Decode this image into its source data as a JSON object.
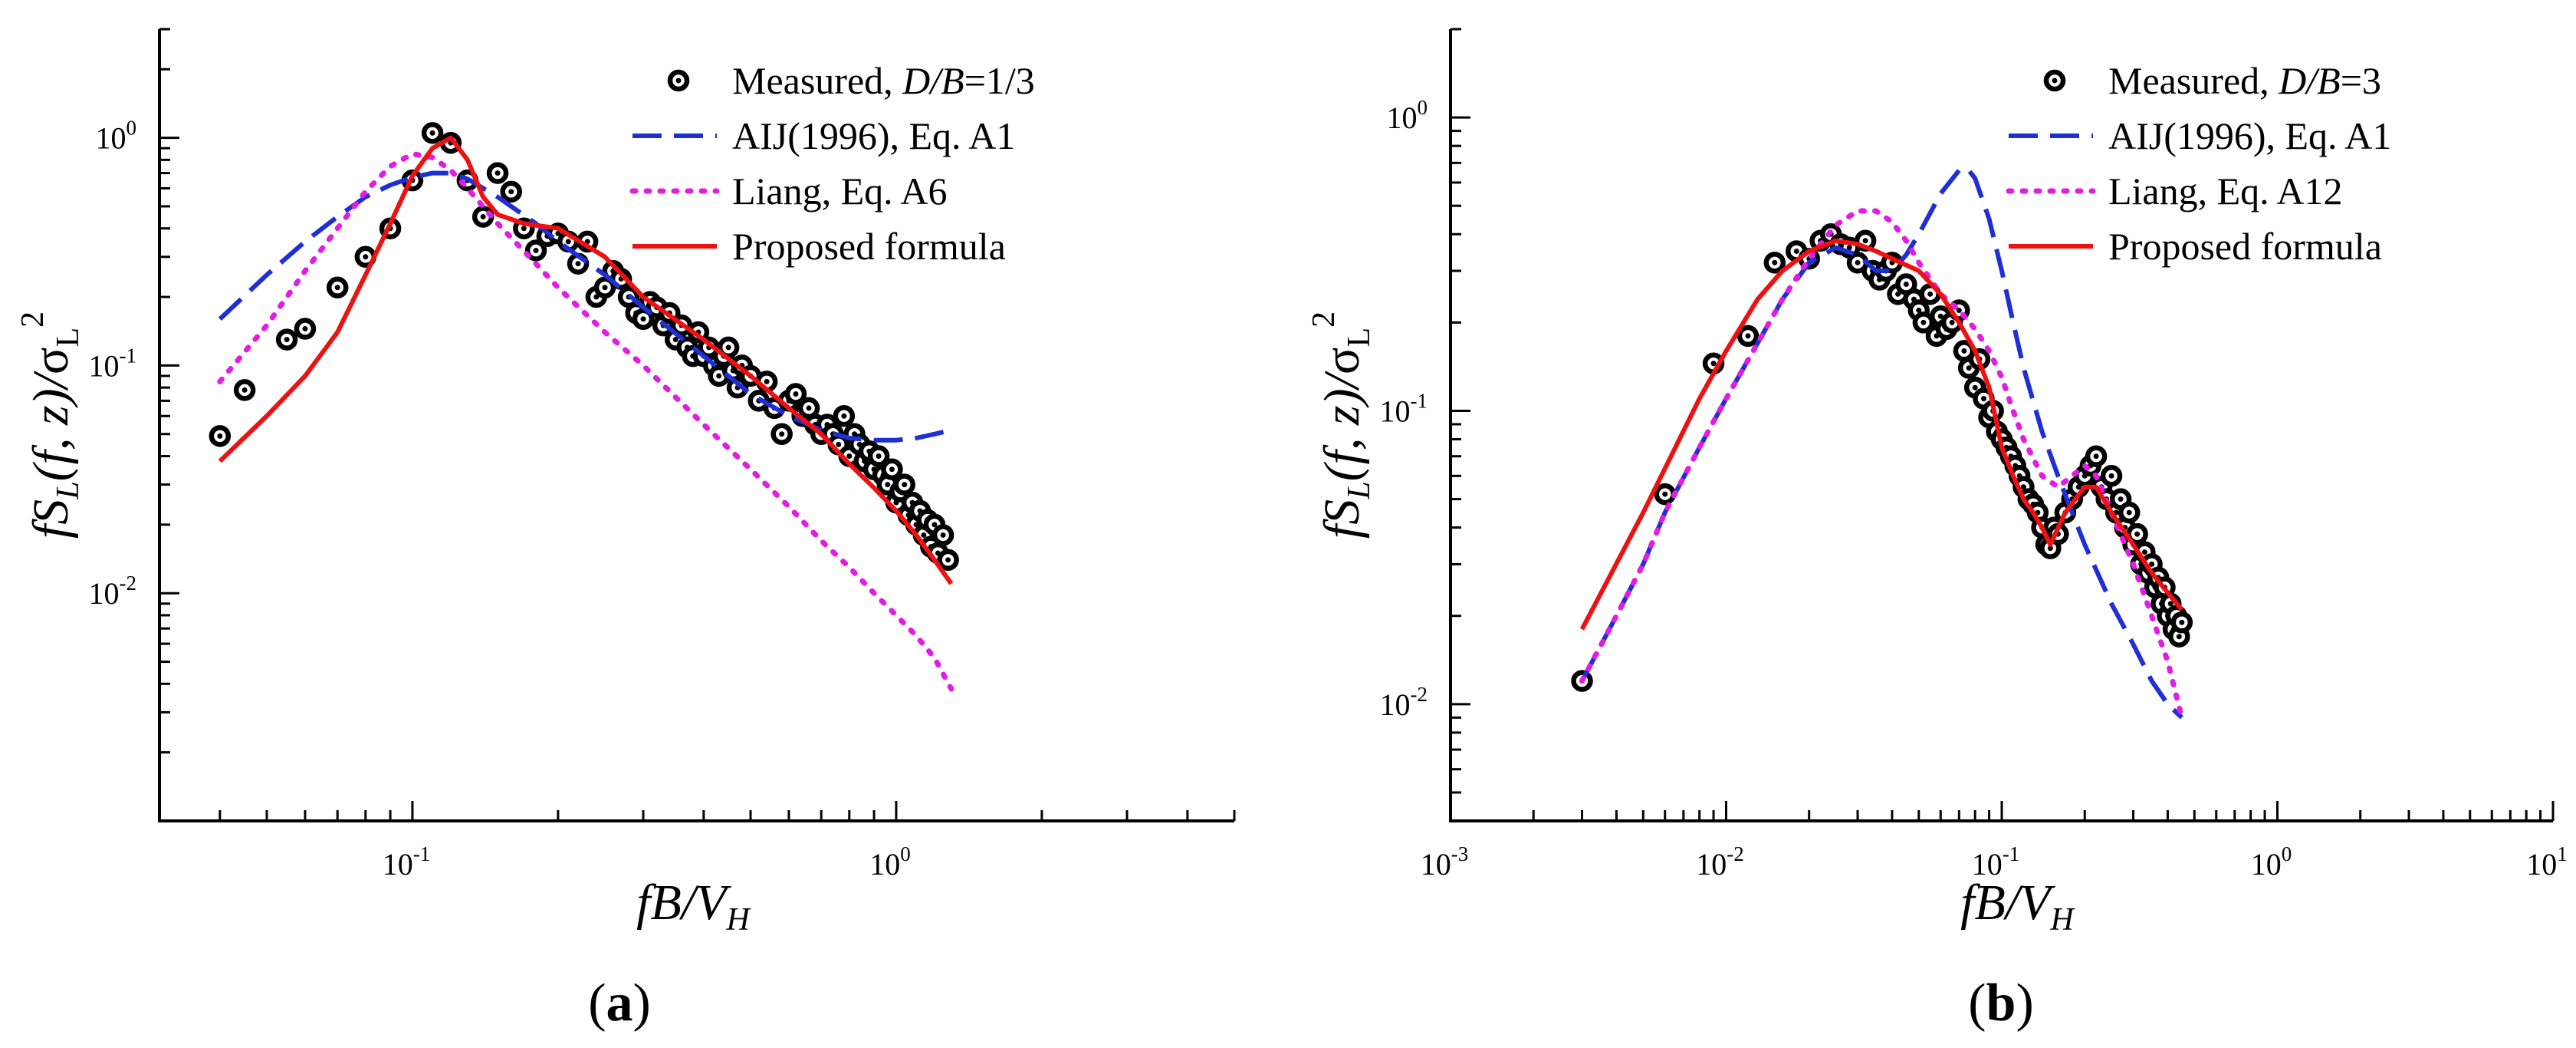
{
  "chart_data": [
    {
      "type": "line",
      "panel_label": "a",
      "xscale": "log",
      "yscale": "log",
      "xlim": [
        0.03,
        5
      ],
      "ylim": [
        0.001,
        3
      ],
      "xticks": [
        0.1,
        1
      ],
      "yticks": [
        0.01,
        0.1,
        1
      ],
      "xlabel": "fB/V_H",
      "ylabel": "fS_L(f,z)/σ_L^2",
      "legend_position": "top-right",
      "series": [
        {
          "name": "Measured, D/B=1/3",
          "legend_main": "Measured, ",
          "legend_it": "D/B",
          "legend_tail": "=1/3",
          "style": "markers",
          "color": "#000000",
          "x": [
            0.04,
            0.045,
            0.055,
            0.06,
            0.07,
            0.08,
            0.09,
            0.1,
            0.11,
            0.12,
            0.13,
            0.14,
            0.15,
            0.16,
            0.17,
            0.18,
            0.19,
            0.2,
            0.21,
            0.22,
            0.23,
            0.24,
            0.25,
            0.26,
            0.27,
            0.28,
            0.29,
            0.3,
            0.31,
            0.32,
            0.33,
            0.34,
            0.35,
            0.36,
            0.37,
            0.38,
            0.39,
            0.4,
            0.41,
            0.42,
            0.43,
            0.44,
            0.45,
            0.46,
            0.47,
            0.48,
            0.5,
            0.52,
            0.54,
            0.56,
            0.58,
            0.6,
            0.62,
            0.64,
            0.66,
            0.68,
            0.7,
            0.72,
            0.74,
            0.76,
            0.78,
            0.8,
            0.82,
            0.84,
            0.86,
            0.88,
            0.9,
            0.92,
            0.94,
            0.96,
            0.98,
            1.0,
            1.02,
            1.04,
            1.06,
            1.08,
            1.1,
            1.12,
            1.14,
            1.16,
            1.18,
            1.2,
            1.22,
            1.25,
            1.28
          ],
          "y": [
            0.049,
            0.078,
            0.13,
            0.145,
            0.22,
            0.3,
            0.4,
            0.65,
            1.05,
            0.95,
            0.65,
            0.45,
            0.7,
            0.58,
            0.4,
            0.32,
            0.37,
            0.38,
            0.35,
            0.28,
            0.35,
            0.2,
            0.22,
            0.26,
            0.24,
            0.2,
            0.17,
            0.16,
            0.19,
            0.18,
            0.15,
            0.17,
            0.13,
            0.15,
            0.12,
            0.11,
            0.14,
            0.11,
            0.12,
            0.1,
            0.09,
            0.11,
            0.12,
            0.095,
            0.08,
            0.1,
            0.09,
            0.07,
            0.085,
            0.065,
            0.05,
            0.07,
            0.075,
            0.06,
            0.065,
            0.055,
            0.05,
            0.055,
            0.05,
            0.045,
            0.06,
            0.04,
            0.05,
            0.045,
            0.038,
            0.042,
            0.035,
            0.04,
            0.033,
            0.03,
            0.035,
            0.025,
            0.028,
            0.03,
            0.022,
            0.025,
            0.02,
            0.023,
            0.018,
            0.021,
            0.016,
            0.02,
            0.015,
            0.018,
            0.014
          ]
        },
        {
          "name": "AIJ(1996), Eq. A1",
          "style": "dashed",
          "color": "#1f2fd6",
          "x": [
            0.04,
            0.05,
            0.06,
            0.07,
            0.08,
            0.09,
            0.1,
            0.11,
            0.12,
            0.13,
            0.15,
            0.18,
            0.2,
            0.25,
            0.3,
            0.4,
            0.5,
            0.6,
            0.7,
            0.8,
            0.9,
            1.0,
            1.1,
            1.2,
            1.3
          ],
          "y": [
            0.16,
            0.25,
            0.35,
            0.45,
            0.55,
            0.62,
            0.67,
            0.7,
            0.7,
            0.66,
            0.55,
            0.42,
            0.35,
            0.25,
            0.18,
            0.11,
            0.075,
            0.06,
            0.052,
            0.048,
            0.047,
            0.047,
            0.048,
            0.05,
            0.052
          ]
        },
        {
          "name": "Liang, Eq. A6",
          "style": "dotted",
          "color": "#e21ce2",
          "x": [
            0.04,
            0.05,
            0.06,
            0.07,
            0.08,
            0.09,
            0.1,
            0.11,
            0.12,
            0.13,
            0.15,
            0.18,
            0.2,
            0.25,
            0.3,
            0.4,
            0.5,
            0.6,
            0.7,
            0.8,
            0.9,
            1.0,
            1.1,
            1.2,
            1.3
          ],
          "y": [
            0.085,
            0.15,
            0.26,
            0.4,
            0.58,
            0.75,
            0.85,
            0.82,
            0.72,
            0.6,
            0.42,
            0.28,
            0.22,
            0.14,
            0.1,
            0.055,
            0.035,
            0.024,
            0.017,
            0.013,
            0.01,
            0.008,
            0.0065,
            0.0052,
            0.0038
          ]
        },
        {
          "name": "Proposed formula",
          "style": "solid",
          "color": "#ee1111",
          "x": [
            0.04,
            0.05,
            0.06,
            0.07,
            0.08,
            0.09,
            0.1,
            0.11,
            0.12,
            0.13,
            0.14,
            0.15,
            0.17,
            0.2,
            0.25,
            0.3,
            0.4,
            0.5,
            0.6,
            0.7,
            0.8,
            0.9,
            1.0,
            1.1,
            1.2,
            1.3
          ],
          "y": [
            0.038,
            0.06,
            0.09,
            0.14,
            0.25,
            0.42,
            0.68,
            0.9,
            1.0,
            0.8,
            0.55,
            0.46,
            0.42,
            0.4,
            0.3,
            0.2,
            0.13,
            0.09,
            0.065,
            0.05,
            0.037,
            0.029,
            0.023,
            0.018,
            0.014,
            0.011
          ]
        }
      ]
    },
    {
      "type": "line",
      "panel_label": "b",
      "xscale": "log",
      "yscale": "log",
      "xlim": [
        0.001,
        10
      ],
      "ylim": [
        0.004,
        2
      ],
      "xticks": [
        0.001,
        0.01,
        0.1,
        1,
        10
      ],
      "yticks": [
        0.01,
        0.1,
        1
      ],
      "xlabel": "fB/V_H",
      "ylabel": "fS_L(f,z)/σ_L^2",
      "legend_position": "top-right",
      "series": [
        {
          "name": "Measured, D/B=3",
          "legend_main": "Measured, ",
          "legend_it": "D/B",
          "legend_tail": "=3",
          "style": "markers",
          "color": "#000000",
          "x": [
            0.003,
            0.006,
            0.009,
            0.012,
            0.015,
            0.018,
            0.02,
            0.022,
            0.024,
            0.026,
            0.028,
            0.03,
            0.032,
            0.034,
            0.036,
            0.038,
            0.04,
            0.042,
            0.045,
            0.048,
            0.05,
            0.052,
            0.055,
            0.058,
            0.06,
            0.063,
            0.066,
            0.07,
            0.073,
            0.076,
            0.08,
            0.083,
            0.086,
            0.09,
            0.093,
            0.096,
            0.1,
            0.104,
            0.108,
            0.112,
            0.116,
            0.12,
            0.125,
            0.13,
            0.135,
            0.14,
            0.145,
            0.15,
            0.155,
            0.16,
            0.17,
            0.18,
            0.19,
            0.2,
            0.21,
            0.22,
            0.23,
            0.24,
            0.25,
            0.26,
            0.27,
            0.28,
            0.29,
            0.3,
            0.31,
            0.32,
            0.33,
            0.34,
            0.35,
            0.36,
            0.37,
            0.38,
            0.39,
            0.4,
            0.41,
            0.42,
            0.43,
            0.44,
            0.45
          ],
          "y": [
            0.012,
            0.052,
            0.145,
            0.18,
            0.32,
            0.35,
            0.33,
            0.38,
            0.4,
            0.37,
            0.36,
            0.32,
            0.38,
            0.3,
            0.28,
            0.3,
            0.32,
            0.25,
            0.27,
            0.24,
            0.22,
            0.2,
            0.25,
            0.18,
            0.21,
            0.19,
            0.2,
            0.22,
            0.16,
            0.14,
            0.12,
            0.15,
            0.11,
            0.095,
            0.1,
            0.085,
            0.08,
            0.075,
            0.07,
            0.065,
            0.06,
            0.055,
            0.05,
            0.048,
            0.045,
            0.04,
            0.035,
            0.034,
            0.04,
            0.038,
            0.045,
            0.05,
            0.055,
            0.06,
            0.065,
            0.07,
            0.055,
            0.05,
            0.06,
            0.045,
            0.05,
            0.04,
            0.045,
            0.035,
            0.038,
            0.03,
            0.033,
            0.028,
            0.03,
            0.025,
            0.027,
            0.022,
            0.025,
            0.02,
            0.022,
            0.018,
            0.02,
            0.017,
            0.019
          ]
        },
        {
          "name": "AIJ(1996), Eq. A1",
          "style": "dashed",
          "color": "#1f2fd6",
          "x": [
            0.003,
            0.004,
            0.005,
            0.006,
            0.008,
            0.01,
            0.013,
            0.016,
            0.02,
            0.025,
            0.03,
            0.035,
            0.04,
            0.045,
            0.05,
            0.06,
            0.07,
            0.075,
            0.08,
            0.09,
            0.1,
            0.11,
            0.12,
            0.14,
            0.16,
            0.18,
            0.2,
            0.25,
            0.3,
            0.35,
            0.4,
            0.45
          ],
          "y": [
            0.012,
            0.02,
            0.03,
            0.045,
            0.075,
            0.11,
            0.17,
            0.24,
            0.32,
            0.36,
            0.34,
            0.3,
            0.3,
            0.34,
            0.4,
            0.55,
            0.66,
            0.67,
            0.62,
            0.45,
            0.3,
            0.2,
            0.14,
            0.085,
            0.06,
            0.045,
            0.035,
            0.022,
            0.016,
            0.012,
            0.01,
            0.009
          ]
        },
        {
          "name": "Liang, Eq. A12",
          "style": "dotted",
          "color": "#e21ce2",
          "x": [
            0.003,
            0.004,
            0.005,
            0.006,
            0.008,
            0.01,
            0.013,
            0.016,
            0.02,
            0.025,
            0.03,
            0.035,
            0.04,
            0.045,
            0.05,
            0.06,
            0.07,
            0.08,
            0.09,
            0.1,
            0.11,
            0.12,
            0.14,
            0.16,
            0.18,
            0.2,
            0.22,
            0.25,
            0.3,
            0.35,
            0.4,
            0.45
          ],
          "y": [
            0.012,
            0.02,
            0.03,
            0.045,
            0.075,
            0.11,
            0.17,
            0.24,
            0.33,
            0.43,
            0.48,
            0.48,
            0.44,
            0.38,
            0.32,
            0.25,
            0.22,
            0.19,
            0.16,
            0.13,
            0.1,
            0.08,
            0.06,
            0.055,
            0.06,
            0.065,
            0.06,
            0.045,
            0.03,
            0.02,
            0.014,
            0.009
          ]
        },
        {
          "name": "Proposed formula",
          "style": "solid",
          "color": "#ee1111",
          "x": [
            0.003,
            0.005,
            0.008,
            0.01,
            0.013,
            0.016,
            0.02,
            0.025,
            0.03,
            0.035,
            0.04,
            0.05,
            0.06,
            0.07,
            0.08,
            0.09,
            0.1,
            0.11,
            0.12,
            0.13,
            0.14,
            0.15,
            0.17,
            0.2,
            0.22,
            0.25,
            0.3,
            0.35,
            0.4,
            0.45
          ],
          "y": [
            0.018,
            0.045,
            0.11,
            0.16,
            0.24,
            0.3,
            0.35,
            0.38,
            0.37,
            0.35,
            0.33,
            0.3,
            0.25,
            0.2,
            0.16,
            0.12,
            0.075,
            0.06,
            0.05,
            0.045,
            0.04,
            0.035,
            0.045,
            0.055,
            0.055,
            0.045,
            0.035,
            0.028,
            0.024,
            0.021
          ]
        }
      ]
    }
  ]
}
